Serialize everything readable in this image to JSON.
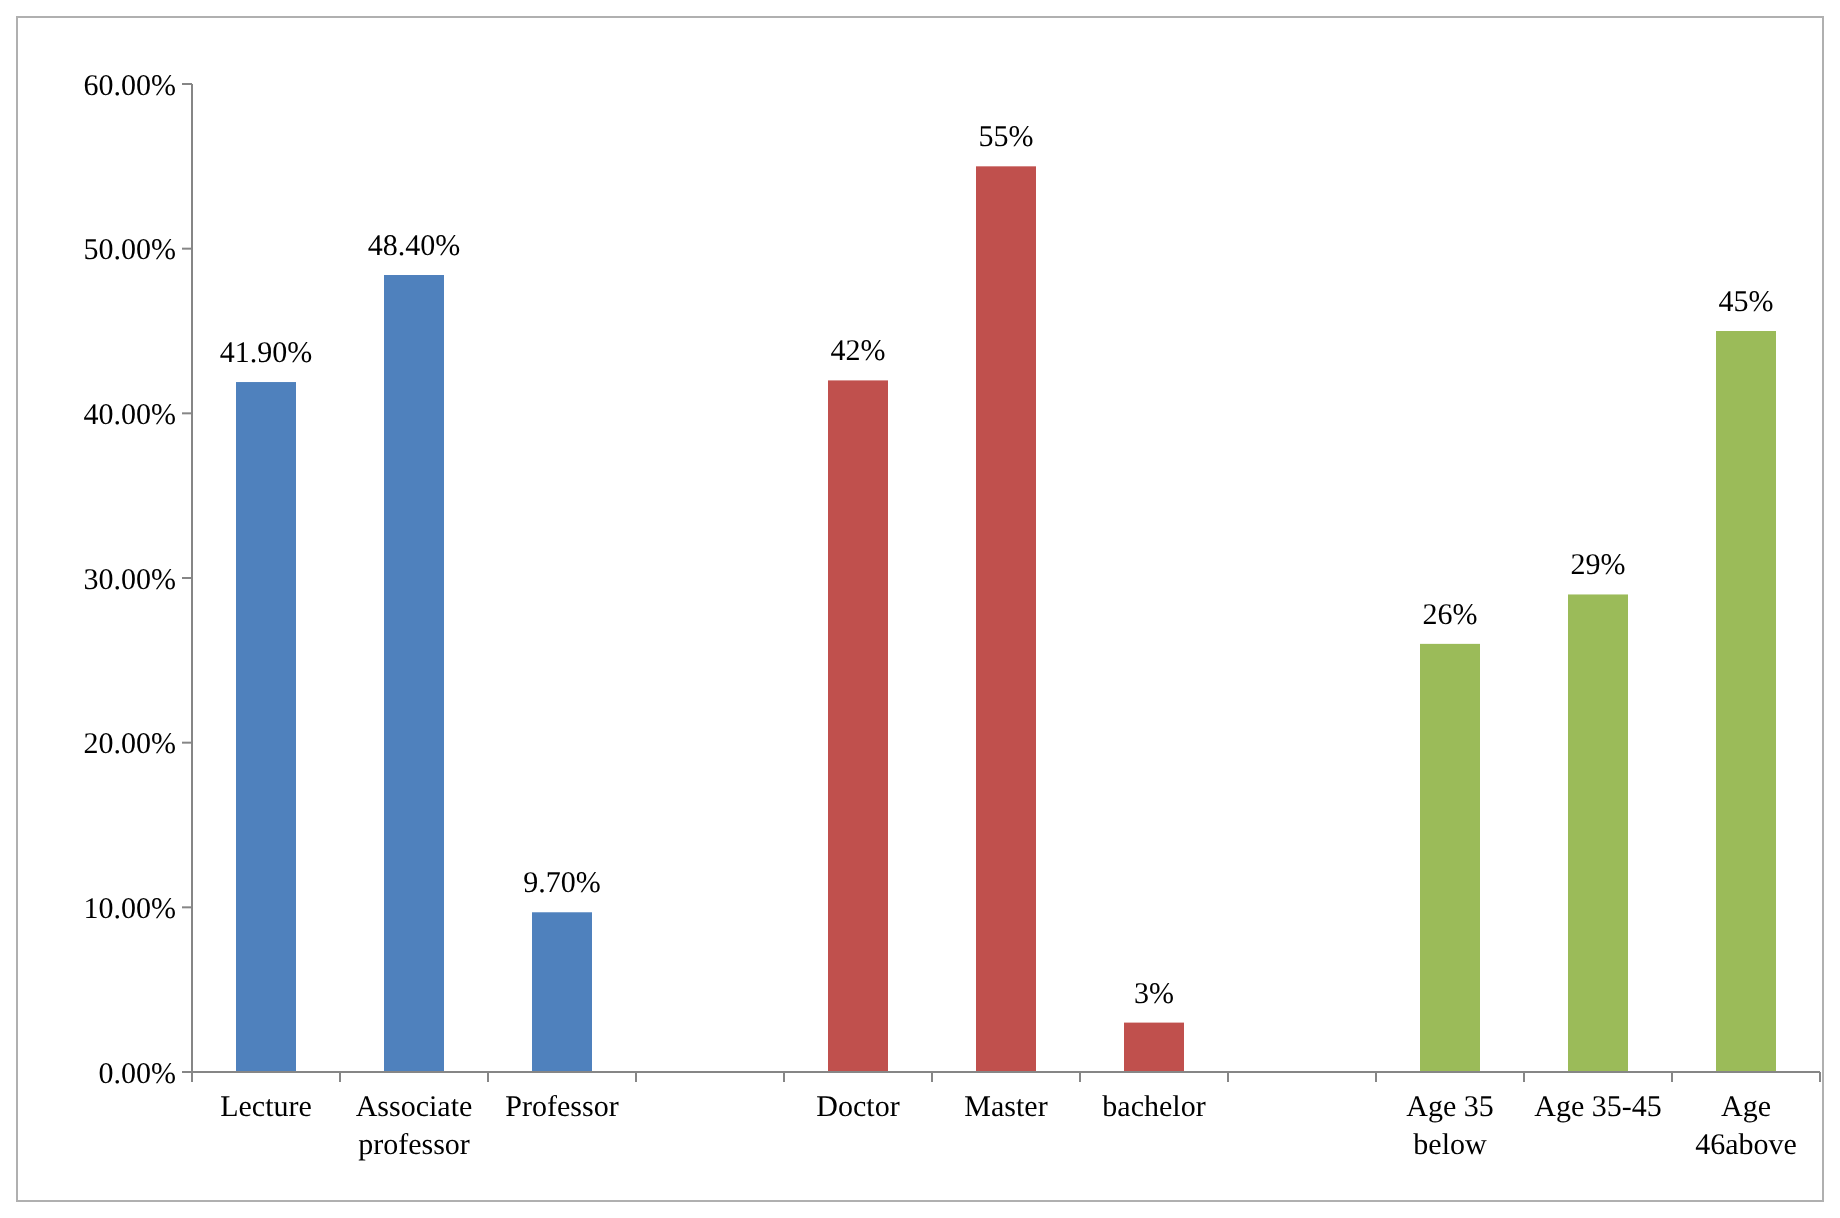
{
  "chart_data": {
    "type": "bar",
    "categories": [
      "Lecture",
      "Associate professor",
      "Professor",
      null,
      "Doctor",
      "Master",
      "bachelor",
      null,
      "Age 35 below",
      "Age 35-45",
      "Age 46above"
    ],
    "values": [
      41.9,
      48.4,
      9.7,
      null,
      42,
      55,
      3,
      null,
      26,
      29,
      45
    ],
    "colors": [
      "#4f81bd",
      "#4f81bd",
      "#4f81bd",
      null,
      "#c0504d",
      "#c0504d",
      "#c0504d",
      null,
      "#9bbb59",
      "#9bbb59",
      "#9bbb59"
    ],
    "value_labels": [
      "41.90%",
      "48.40%",
      "9.70%",
      null,
      "42%",
      "55%",
      "3%",
      null,
      "26%",
      "29%",
      "45%"
    ],
    "ylim": [
      0,
      60
    ],
    "yticks": [
      {
        "value": 0,
        "label": "0.00%"
      },
      {
        "value": 10,
        "label": "10.00%"
      },
      {
        "value": 20,
        "label": "20.00%"
      },
      {
        "value": 30,
        "label": "30.00%"
      },
      {
        "value": 40,
        "label": "40.00%"
      },
      {
        "value": 50,
        "label": "50.00%"
      },
      {
        "value": 60,
        "label": "60.00%"
      }
    ],
    "grid": false
  }
}
